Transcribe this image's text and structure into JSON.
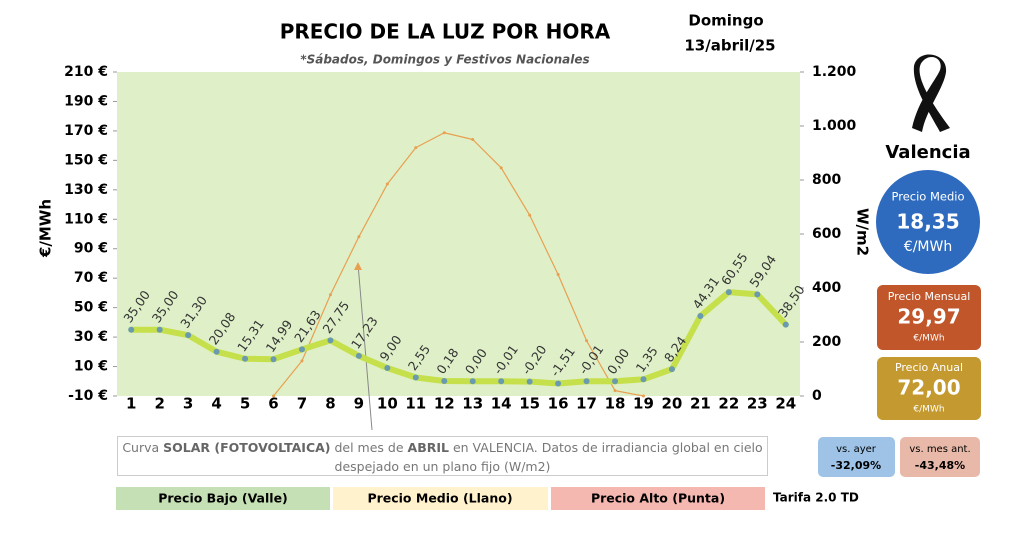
{
  "chart_data": {
    "type": "line",
    "title": "PRECIO DE LA LUZ POR HORA",
    "subtitle": "*Sábados, Domingos y Festivos Nacionales",
    "day": "Domingo",
    "date": "13/abril/25",
    "ylabel": "€/MWh",
    "y2label": "W/m2",
    "categories": [
      "1",
      "2",
      "3",
      "4",
      "5",
      "6",
      "7",
      "8",
      "9",
      "10",
      "11",
      "12",
      "13",
      "14",
      "15",
      "16",
      "17",
      "18",
      "19",
      "20",
      "21",
      "22",
      "23",
      "24"
    ],
    "series": [
      {
        "color": "#c5e04a",
        "marker_color": "#6a9ab0",
        "values": [
          35.0,
          35.0,
          31.3,
          20.08,
          15.31,
          14.99,
          21.63,
          27.75,
          17.23,
          9.0,
          2.55,
          0.18,
          0.0,
          -0.01,
          -0.2,
          -1.51,
          -0.01,
          0.0,
          1.35,
          8.24,
          44.31,
          60.55,
          59.04,
          38.5
        ],
        "value_labels": [
          "35,00",
          "35,00",
          "31,30",
          "20,08",
          "15,31",
          "14,99",
          "21,63",
          "27,75",
          "17,23",
          "9,00",
          "2,55",
          "0,18",
          "0,00",
          "-0,01",
          "-0,20",
          "-1,51",
          "-0,01",
          "0,00",
          "1,35",
          "8,24",
          "44,31",
          "60,55",
          "59,04",
          "38,50"
        ]
      },
      {
        "color": "#e8a050",
        "axis": "y2",
        "values": [
          null,
          null,
          null,
          null,
          null,
          0,
          130,
          375,
          590,
          785,
          920,
          975,
          950,
          845,
          670,
          450,
          205,
          20,
          0,
          null,
          null,
          null,
          null,
          null
        ]
      }
    ],
    "ylim": [
      -10,
      210
    ],
    "yticks": [
      {
        "value": -10,
        "label": "-10 €"
      },
      {
        "value": 10,
        "label": "10 €"
      },
      {
        "value": 30,
        "label": "30 €"
      },
      {
        "value": 50,
        "label": "50 €"
      },
      {
        "value": 70,
        "label": "70 €"
      },
      {
        "value": 90,
        "label": "90 €"
      },
      {
        "value": 110,
        "label": "110 €"
      },
      {
        "value": 130,
        "label": "130 €"
      },
      {
        "value": 150,
        "label": "150 €"
      },
      {
        "value": 170,
        "label": "170 €"
      },
      {
        "value": 190,
        "label": "190 €"
      },
      {
        "value": 210,
        "label": "210 €"
      }
    ],
    "y2lim": [
      0,
      1200
    ],
    "y2ticks": [
      0,
      200,
      400,
      600,
      800,
      {
        "value": 1000,
        "label": "1.000"
      },
      {
        "value": 1200,
        "label": "1.200"
      }
    ],
    "grid": false,
    "annotation": [
      "Curva ",
      "SOLAR (FOTOVOLTAICA)",
      " del mes de ",
      "ABRIL",
      " en VALENCIA. Datos de irradiancia global en cielo despejado en un plano fijo (W/m2)"
    ]
  },
  "bands": [
    "Precio Bajo (Valle)",
    "Precio Medio (Llano)",
    "Precio Alto (Punta)"
  ],
  "tariff": "Tarifa 2.0 TD",
  "city": "Valencia",
  "average": {
    "label": "Precio Medio",
    "value": "18,35",
    "unit": "€/MWh"
  },
  "monthly": {
    "label": "Precio Mensual",
    "value": "29,97",
    "unit": "€/MWh"
  },
  "yearly": {
    "label": "Precio Anual",
    "value": "72,00",
    "unit": "€/MWh"
  },
  "vs_yesterday": {
    "label": "vs. ayer",
    "value": "-32,09%"
  },
  "vs_month": {
    "label": "vs. mes ant.",
    "value": "-43,48%"
  }
}
